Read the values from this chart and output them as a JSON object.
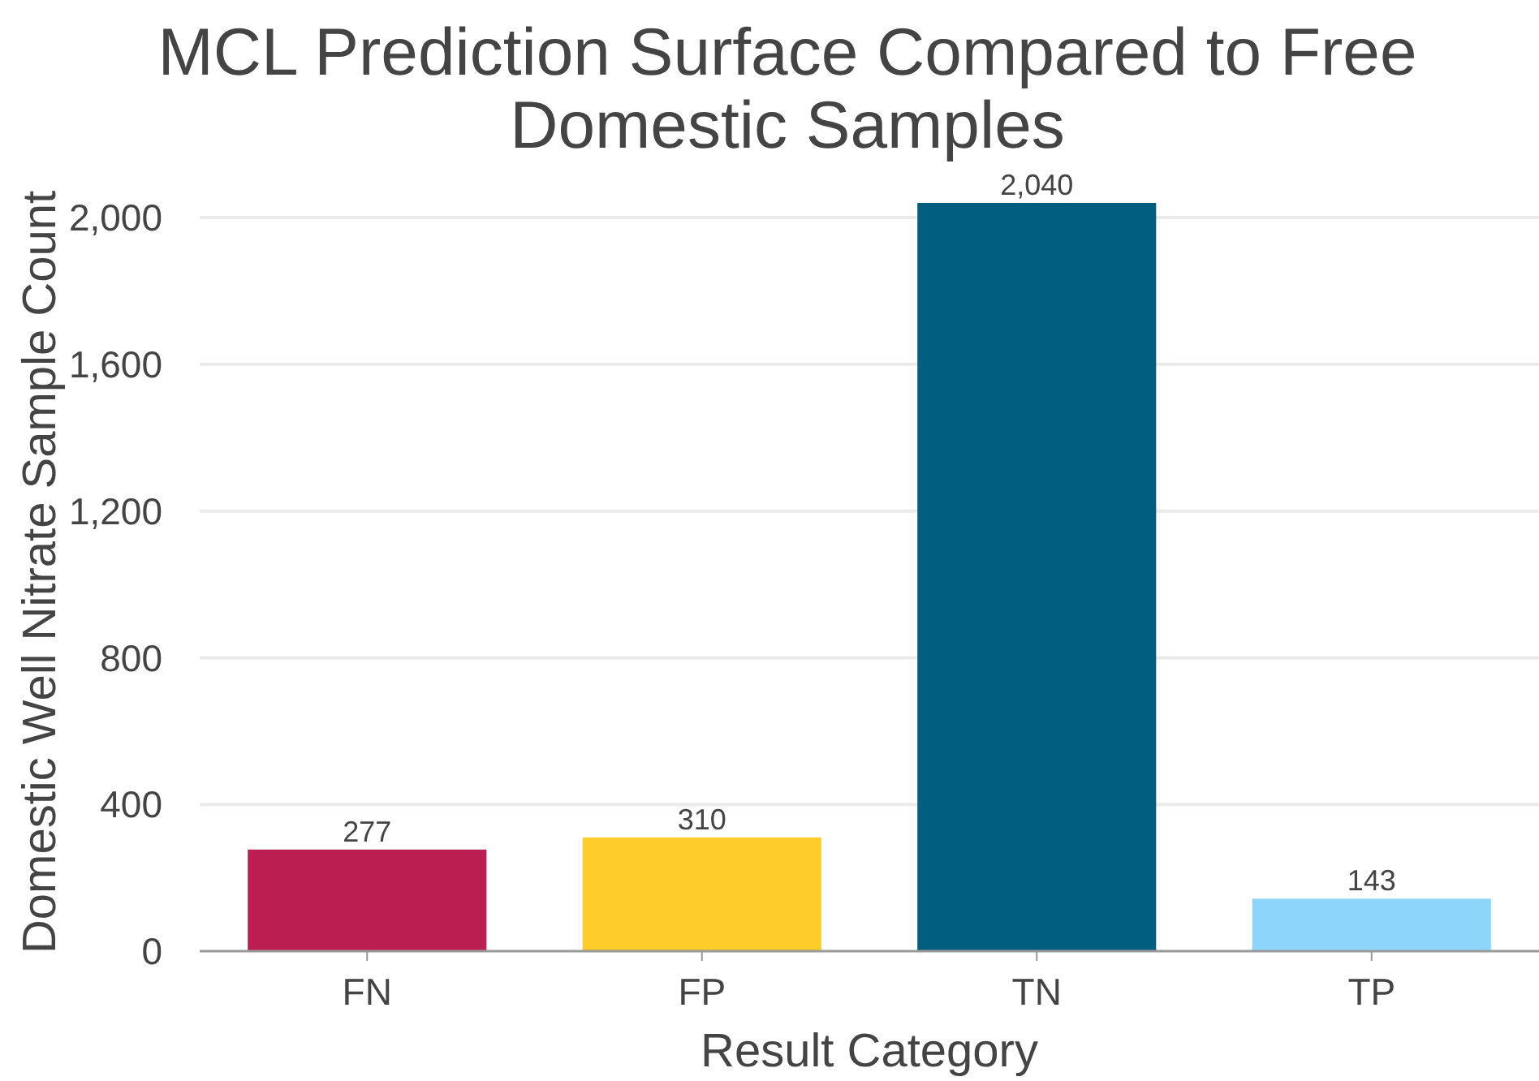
{
  "chart_data": {
    "type": "bar",
    "title": "MCL Prediction Surface Compared to Free Domestic Samples",
    "xlabel": "Result Category",
    "ylabel": "Domestic Well Nitrate Sample Count",
    "categories": [
      "FN",
      "FP",
      "TN",
      "TP"
    ],
    "values": [
      277,
      310,
      2040,
      143
    ],
    "colors": [
      "#bb1e50",
      "#fecc2b",
      "#025e7e",
      "#8dd5fa"
    ],
    "ylim": [
      0,
      2040
    ],
    "yticks": [
      {
        "value": 0,
        "label": "0"
      },
      {
        "value": 400,
        "label": "400"
      },
      {
        "value": 800,
        "label": "800"
      },
      {
        "value": 1200,
        "label": "1,200"
      },
      {
        "value": 1600,
        "label": "1,600"
      },
      {
        "value": 2000,
        "label": "2,000"
      }
    ],
    "grid": "y",
    "value_labels": [
      "277",
      "310",
      "2,040",
      "143"
    ]
  }
}
